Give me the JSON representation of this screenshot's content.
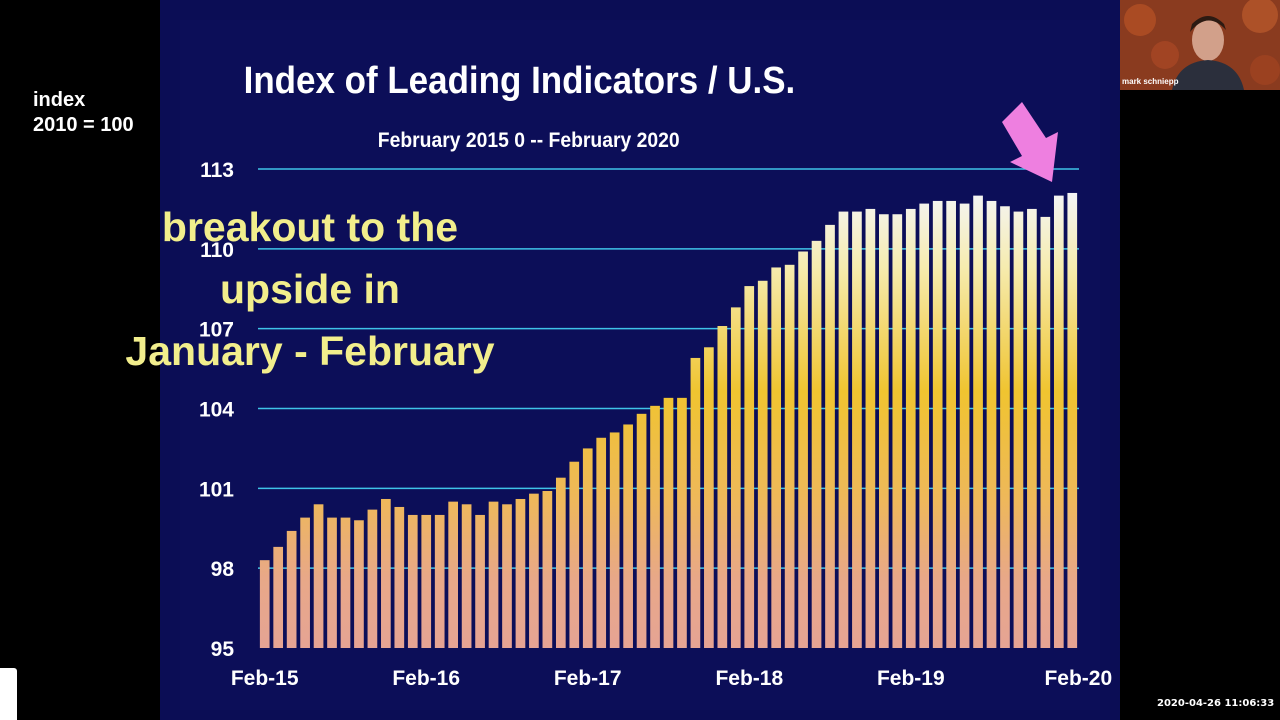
{
  "slide": {
    "title": "Index of Leading Indicators / U.S.",
    "subtitle": "February 2015 0 -- February 2020",
    "unit_line1": "index",
    "unit_line2": "2010 = 100",
    "annotation_lines": [
      "breakout to the",
      "upside in",
      "January - February"
    ],
    "arrow_color": "#ee7fe0",
    "background_color": "#0c0e58",
    "gridline_color": "#3fc3e8"
  },
  "webcam": {
    "name": "mark schniepp"
  },
  "timestamp": "2020-04-26 11:06:33",
  "chart_data": {
    "type": "bar",
    "xlabel": "",
    "ylabel": "index 2010 = 100",
    "ylim": [
      95,
      113
    ],
    "yticks": [
      95,
      98,
      101,
      104,
      107,
      110,
      113
    ],
    "xtick_labels": [
      "Feb-15",
      "Feb-16",
      "Feb-17",
      "Feb-18",
      "Feb-19",
      "Feb-20"
    ],
    "xtick_bar_index": [
      0,
      12,
      24,
      36,
      48,
      60
    ],
    "grid": true,
    "bar_fill": "gradient white-top to yellow to salmon-bottom",
    "values": [
      98.3,
      98.8,
      99.4,
      99.9,
      100.4,
      99.9,
      99.9,
      99.8,
      100.2,
      100.6,
      100.3,
      100.0,
      100.0,
      100.0,
      100.5,
      100.4,
      100.0,
      100.5,
      100.4,
      100.6,
      100.8,
      100.9,
      101.4,
      102.0,
      102.5,
      102.9,
      103.1,
      103.4,
      103.8,
      104.1,
      104.4,
      104.4,
      105.9,
      106.3,
      107.1,
      107.8,
      108.6,
      108.8,
      109.3,
      109.4,
      109.9,
      110.3,
      110.9,
      111.4,
      111.4,
      111.5,
      111.3,
      111.3,
      111.5,
      111.7,
      111.8,
      111.8,
      111.7,
      112.0,
      111.8,
      111.6,
      111.4,
      111.5,
      111.2,
      112.0,
      112.1
    ]
  }
}
